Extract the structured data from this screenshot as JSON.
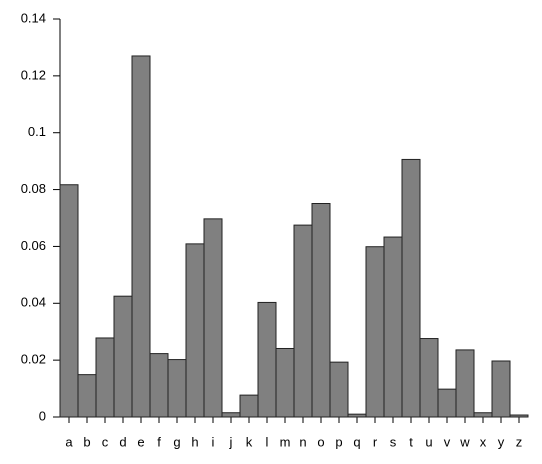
{
  "chart_data": {
    "type": "bar",
    "categories": [
      "a",
      "b",
      "c",
      "d",
      "e",
      "f",
      "g",
      "h",
      "i",
      "j",
      "k",
      "l",
      "m",
      "n",
      "o",
      "p",
      "q",
      "r",
      "s",
      "t",
      "u",
      "v",
      "w",
      "x",
      "y",
      "z"
    ],
    "values": [
      0.0817,
      0.0149,
      0.0278,
      0.0425,
      0.127,
      0.0223,
      0.0202,
      0.0609,
      0.0697,
      0.0015,
      0.0077,
      0.0403,
      0.0241,
      0.0675,
      0.0751,
      0.0193,
      0.001,
      0.0599,
      0.0633,
      0.0906,
      0.0276,
      0.0098,
      0.0236,
      0.0015,
      0.0197,
      0.0007
    ],
    "color": "#808080",
    "ylim": [
      0,
      0.14
    ],
    "yticks": [
      0,
      0.02,
      0.04,
      0.06,
      0.08,
      0.1,
      0.12,
      0.14
    ],
    "grid": false
  }
}
